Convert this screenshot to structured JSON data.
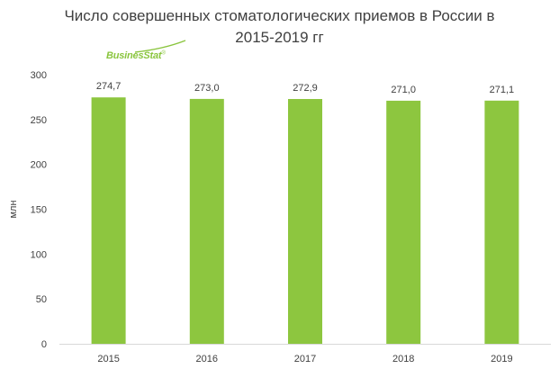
{
  "chart_data": {
    "type": "bar",
    "title_lines": [
      "Число совершенных стоматологических приемов  в России в",
      "2015-2019 гг"
    ],
    "logo_text": "BusinesStat",
    "logo_mark": "®",
    "ylabel": "млн",
    "xlabel": "",
    "categories": [
      "2015",
      "2016",
      "2017",
      "2018",
      "2019"
    ],
    "values": [
      274.7,
      273.0,
      272.9,
      271.0,
      271.1
    ],
    "data_labels": [
      "274,7",
      "273,0",
      "272,9",
      "271,0",
      "271,1"
    ],
    "ylim": [
      0,
      300
    ],
    "yticks": [
      0,
      50,
      100,
      150,
      200,
      250,
      300
    ],
    "grid": false,
    "legend": "none",
    "bar_color": "#8dc63f",
    "axis_color": "#d9d9d9"
  }
}
